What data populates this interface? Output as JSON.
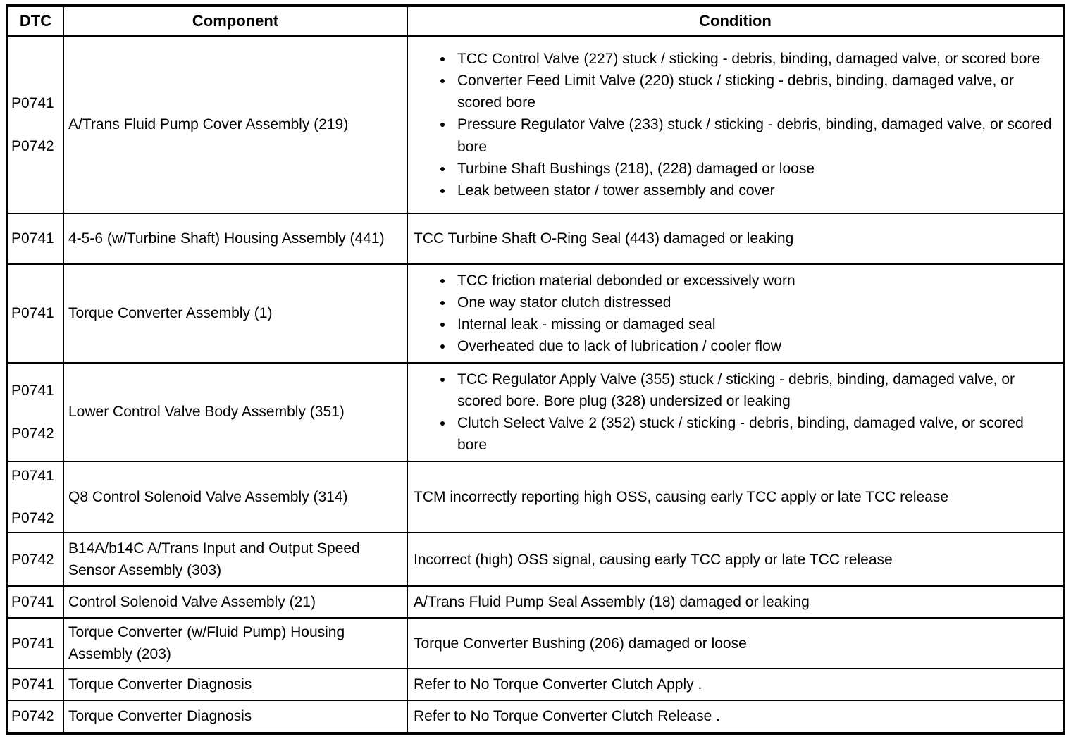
{
  "table": {
    "headers": [
      "DTC",
      "Component",
      "Condition"
    ],
    "rows": [
      {
        "dtc": [
          "P0741",
          "P0742"
        ],
        "component": "A/Trans Fluid Pump Cover Assembly (219)",
        "condition": {
          "bullets": [
            "TCC Control Valve (227) stuck / sticking - debris, binding, damaged valve, or scored bore",
            "Converter Feed Limit Valve (220) stuck / sticking - debris, binding, damaged valve, or scored bore",
            "Pressure Regulator Valve (233) stuck / sticking - debris, binding, damaged valve, or scored bore",
            "Turbine Shaft Bushings (218), (228) damaged or loose",
            "Leak between stator / tower assembly and cover"
          ]
        }
      },
      {
        "dtc": [
          "P0741"
        ],
        "component": "4-5-6 (w/Turbine Shaft) Housing Assembly (441)",
        "condition": {
          "text": "TCC Turbine Shaft O-Ring Seal (443) damaged or leaking"
        }
      },
      {
        "dtc": [
          "P0741"
        ],
        "component": "Torque Converter Assembly (1)",
        "condition": {
          "bullets": [
            "TCC friction material debonded or excessively worn",
            "One way stator clutch distressed",
            "Internal leak - missing or damaged seal",
            "Overheated due to lack of lubrication / cooler flow"
          ]
        }
      },
      {
        "dtc": [
          "P0741",
          "P0742"
        ],
        "component": "Lower Control Valve Body Assembly (351)",
        "condition": {
          "bullets": [
            "TCC Regulator Apply Valve (355) stuck / sticking - debris, binding, damaged valve, or scored bore. Bore plug (328) undersized or leaking",
            "Clutch Select Valve 2 (352) stuck / sticking - debris, binding, damaged valve, or scored bore"
          ]
        }
      },
      {
        "dtc": [
          "P0741",
          "P0742"
        ],
        "component": "Q8 Control Solenoid Valve Assembly (314)",
        "condition": {
          "text": "TCM incorrectly reporting high OSS, causing early TCC apply or late TCC release"
        }
      },
      {
        "dtc": [
          "P0742"
        ],
        "component": "B14A/b14C A/Trans Input and Output Speed Sensor Assembly (303)",
        "condition": {
          "text": "Incorrect (high) OSS signal, causing early TCC apply or late TCC release"
        }
      },
      {
        "dtc": [
          "P0741"
        ],
        "component": "Control Solenoid Valve Assembly (21)",
        "condition": {
          "text": "A/Trans Fluid Pump Seal Assembly (18) damaged or leaking"
        }
      },
      {
        "dtc": [
          "P0741"
        ],
        "component": "Torque Converter (w/Fluid Pump) Housing Assembly (203)",
        "condition": {
          "text": "Torque Converter Bushing (206) damaged or loose"
        }
      },
      {
        "dtc": [
          "P0741"
        ],
        "component": "Torque Converter Diagnosis",
        "condition": {
          "text": "Refer to No Torque Converter Clutch Apply ."
        }
      },
      {
        "dtc": [
          "P0742"
        ],
        "component": "Torque Converter Diagnosis",
        "condition": {
          "text": "Refer to No Torque Converter Clutch Release ."
        }
      }
    ]
  }
}
